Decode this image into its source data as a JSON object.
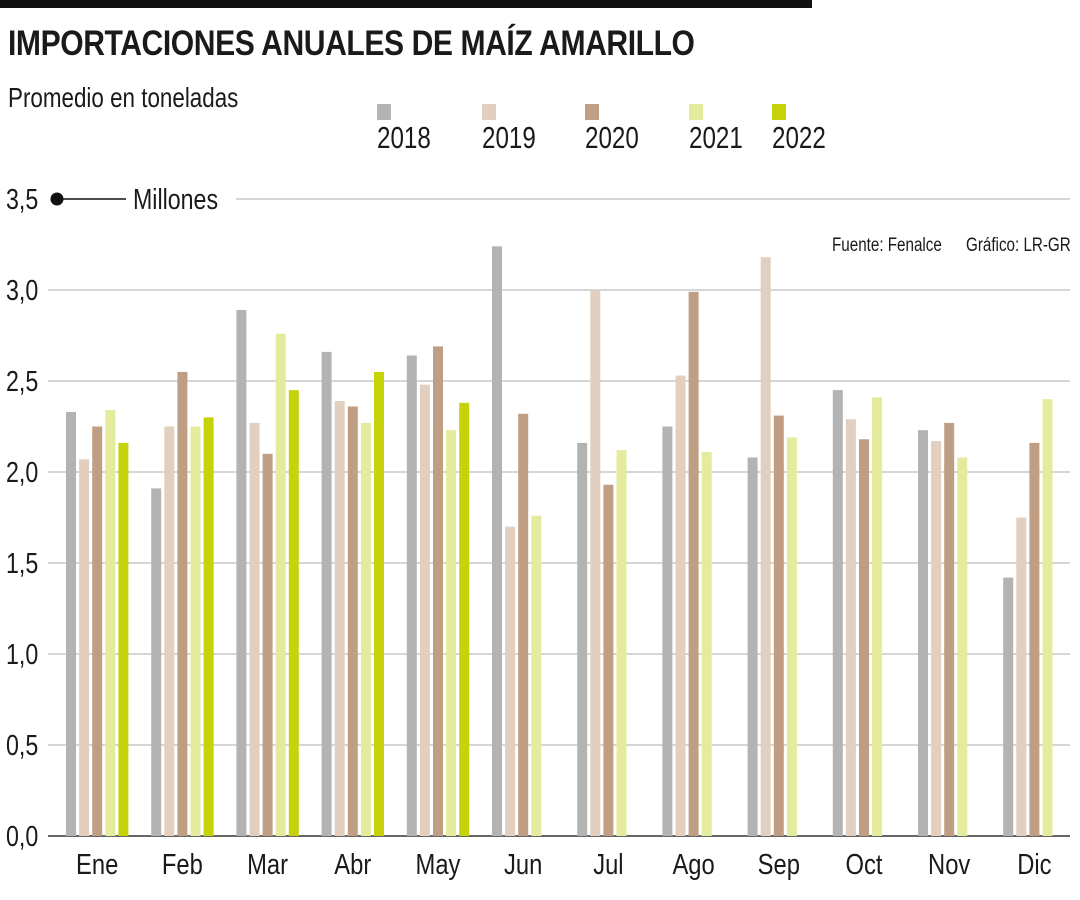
{
  "title": "IMPORTACIONES ANUALES DE MAÍZ AMARILLO",
  "subtitle": "Promedio en toneladas",
  "source": "Fuente: Fenalce",
  "credit": "Gráfico: LR-GR",
  "colors": {
    "grid": "#bdbdbd",
    "axis": "#333333",
    "s2018": "#b3b3b3",
    "s2019": "#e2cfbf",
    "s2020": "#bf9e84",
    "s2021": "#e4eb9c",
    "s2022": "#c6d20a"
  },
  "chart_data": {
    "type": "bar",
    "title": "IMPORTACIONES ANUALES DE MAÍZ AMARILLO",
    "subtitle": "Promedio en toneladas",
    "unit_label": "Millones",
    "ylim": [
      0,
      3.5
    ],
    "yticks": [
      "0,0",
      "0,5",
      "1,0",
      "1,5",
      "2,0",
      "2,5",
      "3,0",
      "3,5"
    ],
    "categories": [
      "Ene",
      "Feb",
      "Mar",
      "Abr",
      "May",
      "Jun",
      "Jul",
      "Ago",
      "Sep",
      "Oct",
      "Nov",
      "Dic"
    ],
    "series": [
      {
        "name": "2018",
        "color": "#b3b3b3",
        "values": [
          2.33,
          1.91,
          2.89,
          2.66,
          2.64,
          3.24,
          2.16,
          2.25,
          2.08,
          2.45,
          2.23,
          1.42
        ]
      },
      {
        "name": "2019",
        "color": "#e2cfbf",
        "values": [
          2.07,
          2.25,
          2.27,
          2.39,
          2.48,
          1.7,
          3.0,
          2.53,
          3.18,
          2.29,
          2.17,
          1.75
        ]
      },
      {
        "name": "2020",
        "color": "#bf9e84",
        "values": [
          2.25,
          2.55,
          2.1,
          2.36,
          2.69,
          2.32,
          1.93,
          2.99,
          2.31,
          2.18,
          2.27,
          2.16
        ]
      },
      {
        "name": "2021",
        "color": "#e4eb9c",
        "values": [
          2.34,
          2.25,
          2.76,
          2.27,
          2.23,
          1.76,
          2.12,
          2.11,
          2.19,
          2.41,
          2.08,
          2.4
        ]
      },
      {
        "name": "2022",
        "color": "#c6d20a",
        "values": [
          2.16,
          2.3,
          2.45,
          2.55,
          2.38,
          null,
          null,
          null,
          null,
          null,
          null,
          null
        ]
      }
    ]
  }
}
